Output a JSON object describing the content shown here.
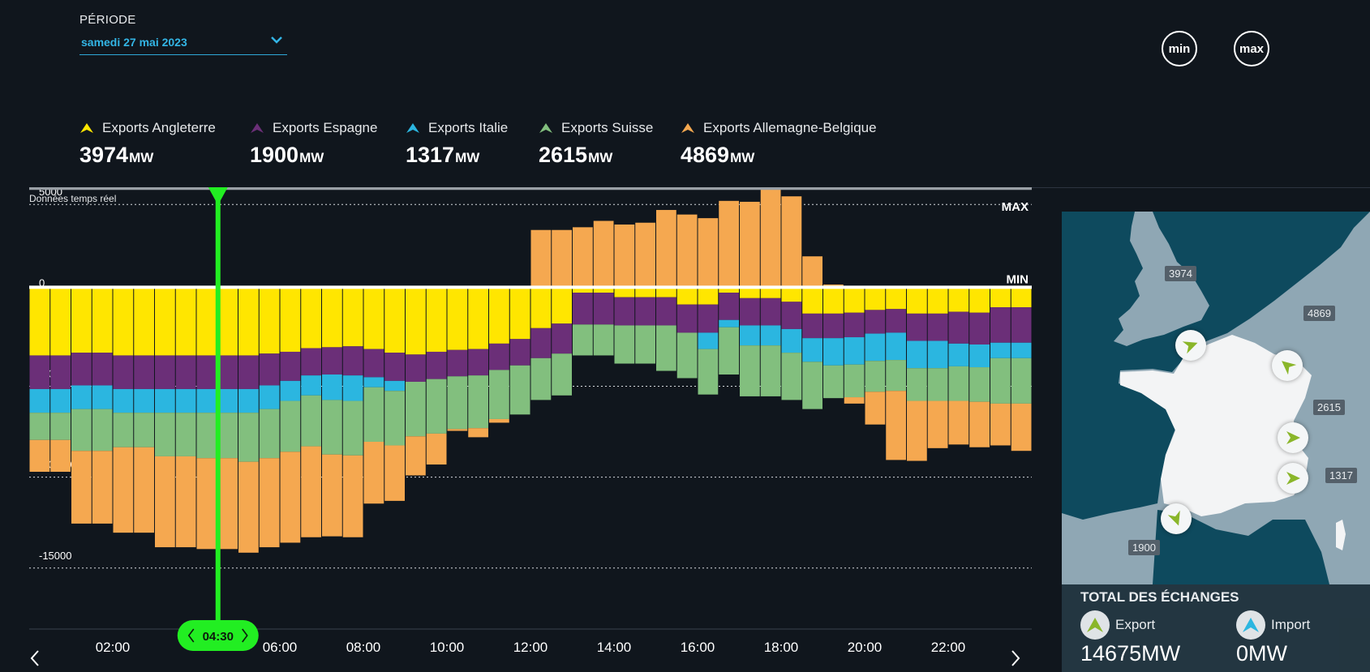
{
  "header": {
    "period_label": "PÉRIODE",
    "period_value": "samedi 27 mai 2023",
    "min_label": "min",
    "max_label": "max"
  },
  "legend": [
    {
      "label": "Exports Angleterre",
      "value": "3974",
      "unit": "MW",
      "color": "#ffe600"
    },
    {
      "label": "Exports Espagne",
      "value": "1900",
      "unit": "MW",
      "color": "#6b2f78"
    },
    {
      "label": "Exports Italie",
      "value": "1317",
      "unit": "MW",
      "color": "#2bb6e0"
    },
    {
      "label": "Exports Suisse",
      "value": "2615",
      "unit": "MW",
      "color": "#82bf7e"
    },
    {
      "label": "Exports Allemagne-Belgique",
      "value": "4869",
      "unit": "MW",
      "color": "#f5a850"
    }
  ],
  "realtime_label": "Données temps réel",
  "chart_data": {
    "type": "bar",
    "stacked": true,
    "x_start_hours": 0,
    "interval_minutes": 30,
    "series": [
      {
        "name": "Exports Angleterre",
        "color": "#ffe600",
        "values": [
          -3750,
          -3750,
          -3600,
          -3600,
          -3750,
          -3750,
          -3750,
          -3750,
          -3750,
          -3750,
          -3750,
          -3650,
          -3550,
          -3350,
          -3300,
          -3250,
          -3400,
          -3600,
          -3700,
          -3550,
          -3450,
          -3400,
          -3100,
          -2850,
          -2250,
          -2000,
          -300,
          -300,
          -550,
          -550,
          -550,
          -950,
          -950,
          -300,
          -600,
          -600,
          -800,
          -1450,
          -1450,
          -1400,
          -1250,
          -1200,
          -1450,
          -1450,
          -1350,
          -1400,
          -1100,
          -1100
        ]
      },
      {
        "name": "Exports Espagne",
        "color": "#6b2f78",
        "values": [
          -1850,
          -1850,
          -1800,
          -1800,
          -1850,
          -1850,
          -1850,
          -1850,
          -1850,
          -1850,
          -1850,
          -1750,
          -1600,
          -1500,
          -1500,
          -1600,
          -1550,
          -1550,
          -1500,
          -1500,
          -1450,
          -1450,
          -1450,
          -1450,
          -1650,
          -1650,
          -1750,
          -1750,
          -1550,
          -1550,
          -1550,
          -1550,
          -1550,
          -1500,
          -1500,
          -1500,
          -1500,
          -1350,
          -1350,
          -1350,
          -1300,
          -1300,
          -1500,
          -1500,
          -1750,
          -1750,
          -1950,
          -1950
        ]
      },
      {
        "name": "Exports Italie",
        "color": "#2bb6e0",
        "values": [
          -1300,
          -1300,
          -1300,
          -1300,
          -1300,
          -1300,
          -1300,
          -1300,
          -1300,
          -1300,
          -1300,
          -1300,
          -1100,
          -1100,
          -1400,
          -1400,
          -550,
          -550,
          0,
          0,
          0,
          0,
          0,
          0,
          0,
          0,
          0,
          0,
          0,
          0,
          0,
          0,
          -900,
          -400,
          -1100,
          -1100,
          -1300,
          -1300,
          -1500,
          -1500,
          -1500,
          -1500,
          -1500,
          -1500,
          -1250,
          -1250,
          -850,
          -850
        ]
      },
      {
        "name": "Exports Suisse",
        "color": "#82bf7e",
        "values": [
          -1500,
          -1500,
          -2300,
          -2300,
          -1900,
          -1900,
          -2400,
          -2400,
          -2500,
          -2500,
          -2700,
          -2700,
          -2800,
          -2800,
          -3000,
          -3000,
          -3000,
          -3000,
          -3000,
          -3000,
          -2900,
          -2900,
          -2700,
          -2700,
          -2300,
          -2300,
          -1700,
          -1700,
          -2100,
          -2100,
          -2500,
          -2500,
          -2500,
          -2600,
          -2800,
          -2800,
          -2600,
          -2600,
          -1800,
          -1800,
          -1700,
          -1700,
          -1800,
          -1800,
          -1900,
          -1900,
          -2500,
          -2500
        ]
      },
      {
        "name": "Exports Allemagne-Belgique",
        "color": "#f5a850",
        "values": [
          -1750,
          -1750,
          -4000,
          -4000,
          -4700,
          -4700,
          -5000,
          -5000,
          -5000,
          -5000,
          -5000,
          -4900,
          -5000,
          -5000,
          -4500,
          -4500,
          -3400,
          -3050,
          -2150,
          -1700,
          -100,
          -500,
          -200,
          0,
          3150,
          3150,
          3300,
          3650,
          3450,
          3550,
          4250,
          4000,
          3800,
          4750,
          4700,
          5400,
          5000,
          1700,
          150,
          -350,
          -1800,
          -3800,
          -3300,
          -2600,
          -2400,
          -2500,
          -2300,
          -2600
        ]
      }
    ],
    "ylim": [
      -18800,
      5500
    ],
    "yticks": [
      5000,
      0,
      -5000,
      -10000,
      -15000
    ],
    "ytick_labels": [
      "5000",
      "0",
      "-5000",
      "-10000",
      "-15000"
    ],
    "xtick_labels": [
      "02:00",
      "04:30",
      "06:00",
      "08:00",
      "10:00",
      "12:00",
      "14:00",
      "16:00",
      "18:00",
      "20:00",
      "22:00"
    ],
    "xtick_hours": [
      2,
      4.5,
      6,
      8,
      10,
      12,
      14,
      16,
      18,
      20,
      22
    ],
    "max_label": "MAX",
    "max_value": 5000,
    "min_label": "MIN",
    "min_value": 0,
    "cursor_label": "04:30",
    "cursor_hours": 4.5,
    "cursor_color": "#22ee22",
    "grid": "dotted horizontal"
  },
  "map": {
    "labels": [
      "3974",
      "4869",
      "2615",
      "1317",
      "1900"
    ]
  },
  "totals": {
    "title": "TOTAL DES ÉCHANGES",
    "export_label": "Export",
    "export_value": "14675MW",
    "import_label": "Import",
    "import_value": "0MW"
  }
}
